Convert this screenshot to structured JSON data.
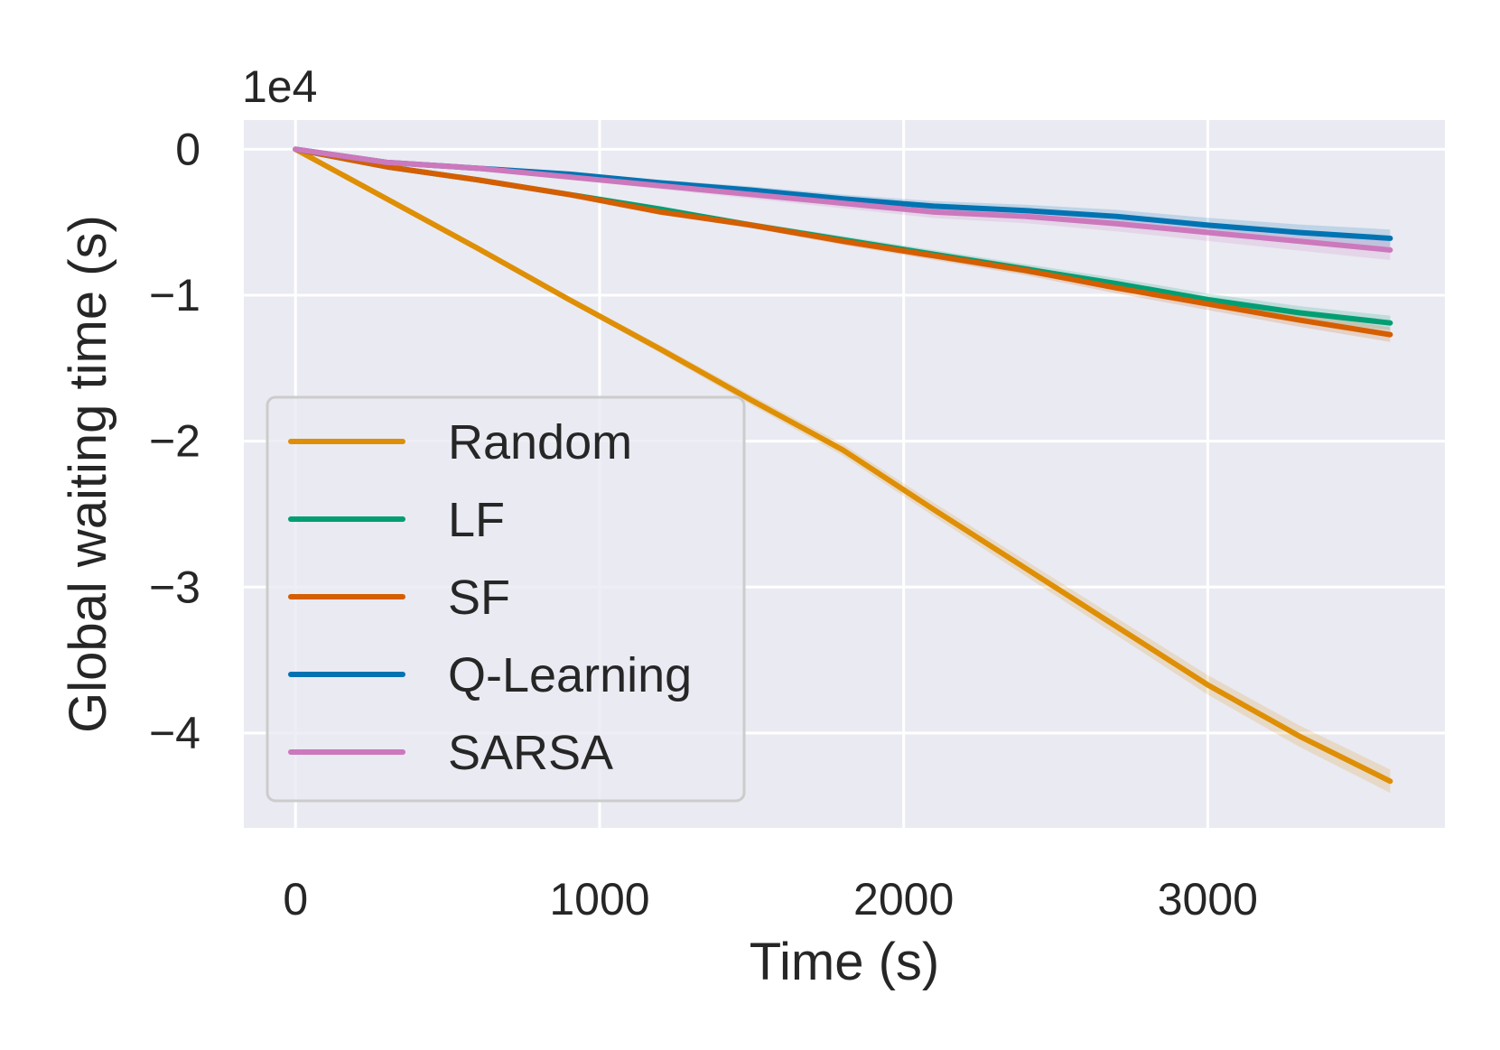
{
  "chart_data": {
    "type": "line",
    "title": "",
    "xlabel": "Time (s)",
    "ylabel": "Global waiting time (s)",
    "y_offset_label": "1e4",
    "y_scale": 10000,
    "xlim": [
      -170,
      3780
    ],
    "ylim": [
      -4.65,
      0.2
    ],
    "xticks": [
      0,
      1000,
      2000,
      3000
    ],
    "xtick_labels": [
      "0",
      "1000",
      "2000",
      "3000"
    ],
    "yticks": [
      0,
      -1,
      -2,
      -3,
      -4
    ],
    "ytick_labels": [
      "0",
      "−1",
      "−2",
      "−3",
      "−4"
    ],
    "grid": true,
    "legend_position": "lower-left",
    "x": [
      0,
      300,
      600,
      900,
      1200,
      1500,
      1800,
      2100,
      2400,
      2700,
      3000,
      3300,
      3600
    ],
    "series": [
      {
        "name": "Random",
        "color": "#de8f05",
        "values": [
          0,
          -0.34,
          -0.68,
          -1.03,
          -1.37,
          -1.72,
          -2.06,
          -2.47,
          -2.87,
          -3.27,
          -3.67,
          -4.02,
          -4.33
        ],
        "band": 0.08
      },
      {
        "name": "LF",
        "color": "#029e73",
        "values": [
          0,
          -0.12,
          -0.21,
          -0.31,
          -0.41,
          -0.52,
          -0.62,
          -0.72,
          -0.82,
          -0.92,
          -1.03,
          -1.12,
          -1.19
        ],
        "band": 0.05
      },
      {
        "name": "SF",
        "color": "#d55e00",
        "values": [
          0,
          -0.12,
          -0.21,
          -0.31,
          -0.43,
          -0.52,
          -0.63,
          -0.73,
          -0.83,
          -0.95,
          -1.06,
          -1.17,
          -1.27
        ],
        "band": 0.05
      },
      {
        "name": "Q-Learning",
        "color": "#0173b2",
        "values": [
          0,
          -0.09,
          -0.13,
          -0.17,
          -0.23,
          -0.28,
          -0.34,
          -0.39,
          -0.42,
          -0.46,
          -0.52,
          -0.57,
          -0.61
        ],
        "band": 0.06
      },
      {
        "name": "SARSA",
        "color": "#cc78bc",
        "values": [
          0,
          -0.09,
          -0.13,
          -0.19,
          -0.25,
          -0.31,
          -0.37,
          -0.43,
          -0.46,
          -0.51,
          -0.57,
          -0.63,
          -0.69
        ],
        "band": 0.07
      }
    ]
  }
}
